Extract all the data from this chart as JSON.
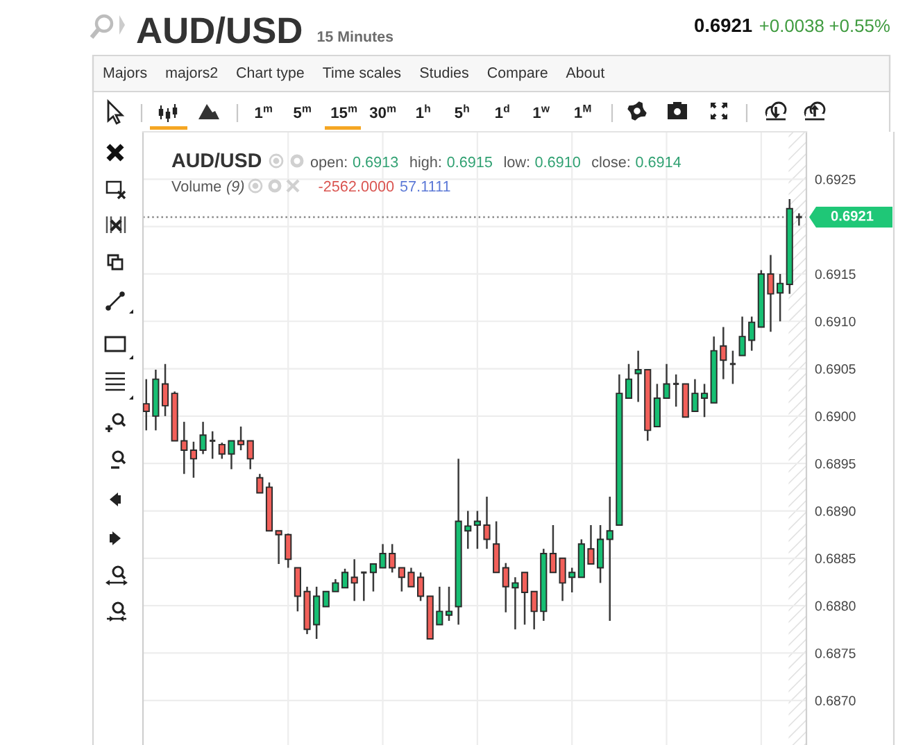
{
  "chart_data": {
    "type": "candlestick",
    "title": "AUD/USD",
    "subtitle": "15 Minutes",
    "categories": [
      null,
      null,
      null,
      null,
      null,
      null,
      null,
      null,
      null,
      null,
      null,
      null,
      null,
      null,
      null,
      null,
      null,
      null,
      null,
      null,
      null,
      null,
      null,
      null,
      null,
      null,
      null,
      null,
      null,
      null,
      null,
      null,
      null,
      null,
      null,
      null,
      null,
      null,
      null,
      null,
      null,
      null,
      null,
      null,
      null,
      null,
      null,
      null,
      null,
      null,
      null,
      null,
      null,
      null,
      null,
      null,
      null,
      null,
      null,
      null,
      null,
      null,
      null,
      null,
      null,
      null,
      null,
      null,
      null,
      null
    ],
    "ohlc": [
      [
        0.69013,
        0.69039,
        0.68985,
        0.69005
      ],
      [
        0.69,
        0.69049,
        0.68985,
        0.69039
      ],
      [
        0.69034,
        0.69055,
        0.69,
        0.69011
      ],
      [
        0.69024,
        0.69026,
        0.68974,
        0.68974
      ],
      [
        0.68974,
        0.68994,
        0.68939,
        0.68964
      ],
      [
        0.68964,
        0.68973,
        0.68935,
        0.68955
      ],
      [
        0.68964,
        0.68994,
        0.6896,
        0.6898
      ],
      [
        0.68974,
        0.68984,
        0.68955,
        0.68974
      ],
      [
        0.6897,
        0.68972,
        0.68955,
        0.6896
      ],
      [
        0.6896,
        0.68974,
        0.68944,
        0.68974
      ],
      [
        0.68974,
        0.68989,
        0.68964,
        0.6897
      ],
      [
        0.68974,
        0.68974,
        0.68944,
        0.68955
      ],
      [
        0.68935,
        0.68939,
        0.68919,
        0.68919
      ],
      [
        0.68925,
        0.6893,
        0.68879,
        0.68879
      ],
      [
        0.68879,
        0.68879,
        0.68844,
        0.68875
      ],
      [
        0.68875,
        0.68876,
        0.6884,
        0.68849
      ],
      [
        0.6884,
        0.6884,
        0.68794,
        0.6881
      ],
      [
        0.68815,
        0.6882,
        0.6877,
        0.68775
      ],
      [
        0.6878,
        0.6882,
        0.68765,
        0.6881
      ],
      [
        0.68799,
        0.68815,
        0.68799,
        0.68815
      ],
      [
        0.68815,
        0.68828,
        0.68815,
        0.68824
      ],
      [
        0.68819,
        0.68839,
        0.68819,
        0.68835
      ],
      [
        0.6883,
        0.68849,
        0.68805,
        0.68824
      ],
      [
        0.68835,
        0.68836,
        0.68805,
        0.68835
      ],
      [
        0.68835,
        0.68844,
        0.68815,
        0.68844
      ],
      [
        0.6884,
        0.68865,
        0.6884,
        0.68855
      ],
      [
        0.68855,
        0.68865,
        0.68835,
        0.6884
      ],
      [
        0.6884,
        0.6884,
        0.68815,
        0.6883
      ],
      [
        0.68835,
        0.6884,
        0.6882,
        0.6882
      ],
      [
        0.6883,
        0.68835,
        0.68805,
        0.6881
      ],
      [
        0.6881,
        0.6881,
        0.68765,
        0.68765
      ],
      [
        0.6878,
        0.6882,
        0.6878,
        0.68794
      ],
      [
        0.6879,
        0.6882,
        0.68784,
        0.68794
      ],
      [
        0.68799,
        0.68955,
        0.6878,
        0.68889
      ],
      [
        0.68879,
        0.689,
        0.6886,
        0.68884
      ],
      [
        0.68885,
        0.689,
        0.6886,
        0.68889
      ],
      [
        0.68885,
        0.68915,
        0.6886,
        0.6887
      ],
      [
        0.68865,
        0.68889,
        0.68835,
        0.68835
      ],
      [
        0.6884,
        0.68845,
        0.68793,
        0.6882
      ],
      [
        0.68819,
        0.6883,
        0.68775,
        0.68824
      ],
      [
        0.68835,
        0.68835,
        0.6878,
        0.68814
      ],
      [
        0.68815,
        0.68815,
        0.68775,
        0.68794
      ],
      [
        0.68794,
        0.6886,
        0.68784,
        0.68855
      ],
      [
        0.68855,
        0.68885,
        0.68835,
        0.68835
      ],
      [
        0.6885,
        0.6885,
        0.68805,
        0.68824
      ],
      [
        0.6883,
        0.6884,
        0.68814,
        0.68835
      ],
      [
        0.6883,
        0.6887,
        0.6883,
        0.68865
      ],
      [
        0.6886,
        0.68885,
        0.68844,
        0.68844
      ],
      [
        0.6884,
        0.68885,
        0.68824,
        0.6887
      ],
      [
        0.6887,
        0.68915,
        0.68784,
        0.68879
      ],
      [
        0.68885,
        0.69044,
        0.68885,
        0.69024
      ],
      [
        0.69019,
        0.69055,
        0.69019,
        0.69039
      ],
      [
        0.69045,
        0.69069,
        0.69015,
        0.69049
      ],
      [
        0.69049,
        0.69049,
        0.68974,
        0.68985
      ],
      [
        0.68989,
        0.69034,
        0.68989,
        0.69019
      ],
      [
        0.69019,
        0.69055,
        0.69019,
        0.69034
      ],
      [
        0.69034,
        0.69044,
        0.6901,
        0.69034
      ],
      [
        0.69034,
        0.69034,
        0.68999,
        0.68999
      ],
      [
        0.69005,
        0.69039,
        0.69005,
        0.69024
      ],
      [
        0.69019,
        0.69034,
        0.68999,
        0.69024
      ],
      [
        0.69014,
        0.69084,
        0.69014,
        0.69069
      ],
      [
        0.69074,
        0.69094,
        0.69039,
        0.69059
      ],
      [
        0.69055,
        0.69069,
        0.69034,
        0.69055
      ],
      [
        0.69064,
        0.69105,
        0.69064,
        0.69084
      ],
      [
        0.6908,
        0.69105,
        0.69069,
        0.69099
      ],
      [
        0.69094,
        0.69154,
        0.69094,
        0.6915
      ],
      [
        0.6915,
        0.6917,
        0.69089,
        0.69129
      ],
      [
        0.6913,
        0.6915,
        0.691,
        0.6914
      ],
      [
        0.69139,
        0.69229,
        0.69129,
        0.69219
      ],
      [
        0.6921,
        0.69214,
        0.69201,
        0.6921
      ]
    ],
    "colors": [
      "#f2605a",
      "#17bf73",
      "#f2605a",
      "#f2605a",
      "#f2605a",
      "#f2605a",
      "#17bf73",
      "#333333",
      "#f2605a",
      "#17bf73",
      "#f2605a",
      "#f2605a",
      "#f2605a",
      "#f2605a",
      "#f2605a",
      "#f2605a",
      "#f2605a",
      "#f2605a",
      "#17bf73",
      "#17bf73",
      "#17bf73",
      "#17bf73",
      "#f2605a",
      "#333333",
      "#17bf73",
      "#17bf73",
      "#f2605a",
      "#f2605a",
      "#f2605a",
      "#f2605a",
      "#f2605a",
      "#17bf73",
      "#17bf73",
      "#17bf73",
      "#17bf73",
      "#17bf73",
      "#f2605a",
      "#f2605a",
      "#f2605a",
      "#17bf73",
      "#f2605a",
      "#f2605a",
      "#17bf73",
      "#f2605a",
      "#f2605a",
      "#17bf73",
      "#17bf73",
      "#f2605a",
      "#17bf73",
      "#17bf73",
      "#17bf73",
      "#17bf73",
      "#17bf73",
      "#f2605a",
      "#17bf73",
      "#17bf73",
      "#333333",
      "#f2605a",
      "#17bf73",
      "#17bf73",
      "#17bf73",
      "#f2605a",
      "#333333",
      "#17bf73",
      "#17bf73",
      "#17bf73",
      "#f2605a",
      "#17bf73",
      "#17bf73",
      "#333333"
    ],
    "ylim": [
      0.68653,
      0.693
    ],
    "yticks": [
      {
        "value": 0.687,
        "label": "0.6870"
      },
      0.6875,
      {
        "value": 0.688,
        "label": "0.6880"
      },
      0.6885,
      {
        "value": 0.689,
        "label": "0.6890"
      },
      0.6895,
      {
        "value": 0.69,
        "label": "0.6900"
      },
      0.6905,
      {
        "value": 0.691,
        "label": "0.6910"
      },
      0.6915,
      {
        "value": 0.692,
        "label": null
      },
      0.6925
    ],
    "grid": true,
    "ref_lines": [
      {
        "axis": "y",
        "value": 0.6921,
        "label": "0.6921",
        "color": "#888888",
        "line_style": "dotted"
      }
    ],
    "annotations": [
      "0.6921",
      "+0.0038",
      "+0.55%",
      "Majors",
      "majors2",
      "Chart type",
      "Time scales",
      "Studies",
      "Compare",
      "About",
      "1$^{m}$",
      "5$^{m}$",
      "15$^{m}$",
      "30$^{m}$",
      "1$^{h}$",
      "5$^{h}$",
      "1$^{d}$",
      "1$^{w}$",
      "1$^{M}$",
      "open: 0.6913",
      "high: 0.6915",
      "low: 0.6910",
      "close: 0.6914",
      "Volume (9)",
      "-2562.0000",
      "57.1111"
    ]
  }
}
